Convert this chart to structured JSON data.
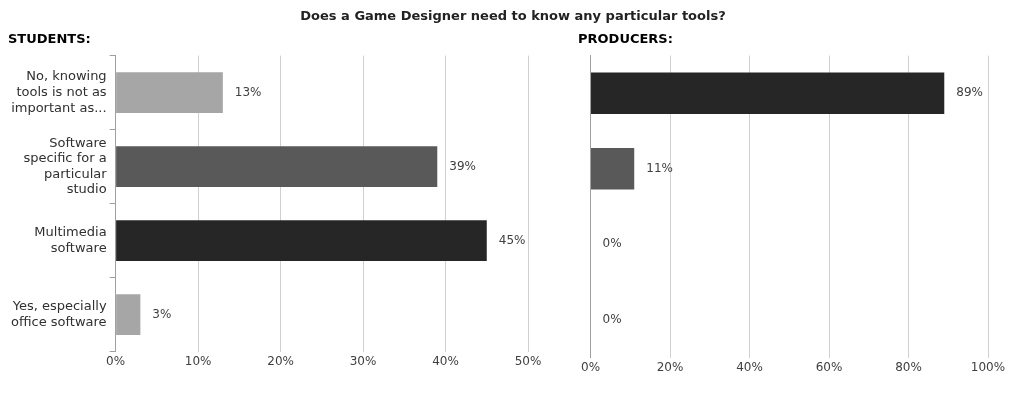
{
  "chart_data": [
    {
      "type": "bar",
      "orientation": "horizontal",
      "title": "Does a Game Designer need to know any particular tools?",
      "subtitle": "STUDENTS:",
      "categories": [
        "No, knowing tools is not as important as...",
        "Software specific for a particular studio",
        "Multimedia software",
        "Yes, especially office software"
      ],
      "values": [
        13,
        39,
        45,
        3
      ],
      "colors": [
        "#a6a6a6",
        "#595959",
        "#262626",
        "#a6a6a6"
      ],
      "value_labels": [
        "13%",
        "39%",
        "45%",
        "3%"
      ],
      "xlim": [
        0,
        50
      ],
      "xticks": [
        {
          "value": 0,
          "label": "0%"
        },
        {
          "value": 10,
          "label": "10%"
        },
        {
          "value": 20,
          "label": "20%"
        },
        {
          "value": 30,
          "label": "30%"
        },
        {
          "value": 40,
          "label": "40%"
        },
        {
          "value": 50,
          "label": "50%"
        }
      ],
      "grid": "x",
      "legend": false
    },
    {
      "type": "bar",
      "orientation": "horizontal",
      "subtitle": "PRODUCERS:",
      "categories": [
        null,
        null,
        null,
        null
      ],
      "values": [
        89,
        11,
        0,
        0
      ],
      "colors": [
        "#262626",
        "#595959",
        "#262626",
        "#a6a6a6"
      ],
      "value_labels": [
        "89%",
        "11%",
        "0%",
        "0%"
      ],
      "xlim": [
        0,
        100
      ],
      "xticks": [
        {
          "value": 0,
          "label": "0%"
        },
        {
          "value": 20,
          "label": "20%"
        },
        {
          "value": 40,
          "label": "40%"
        },
        {
          "value": 60,
          "label": "60%"
        },
        {
          "value": 80,
          "label": "80%"
        },
        {
          "value": 100,
          "label": "100%"
        }
      ],
      "grid": "x",
      "legend": false,
      "tick_labels": "x"
    }
  ]
}
